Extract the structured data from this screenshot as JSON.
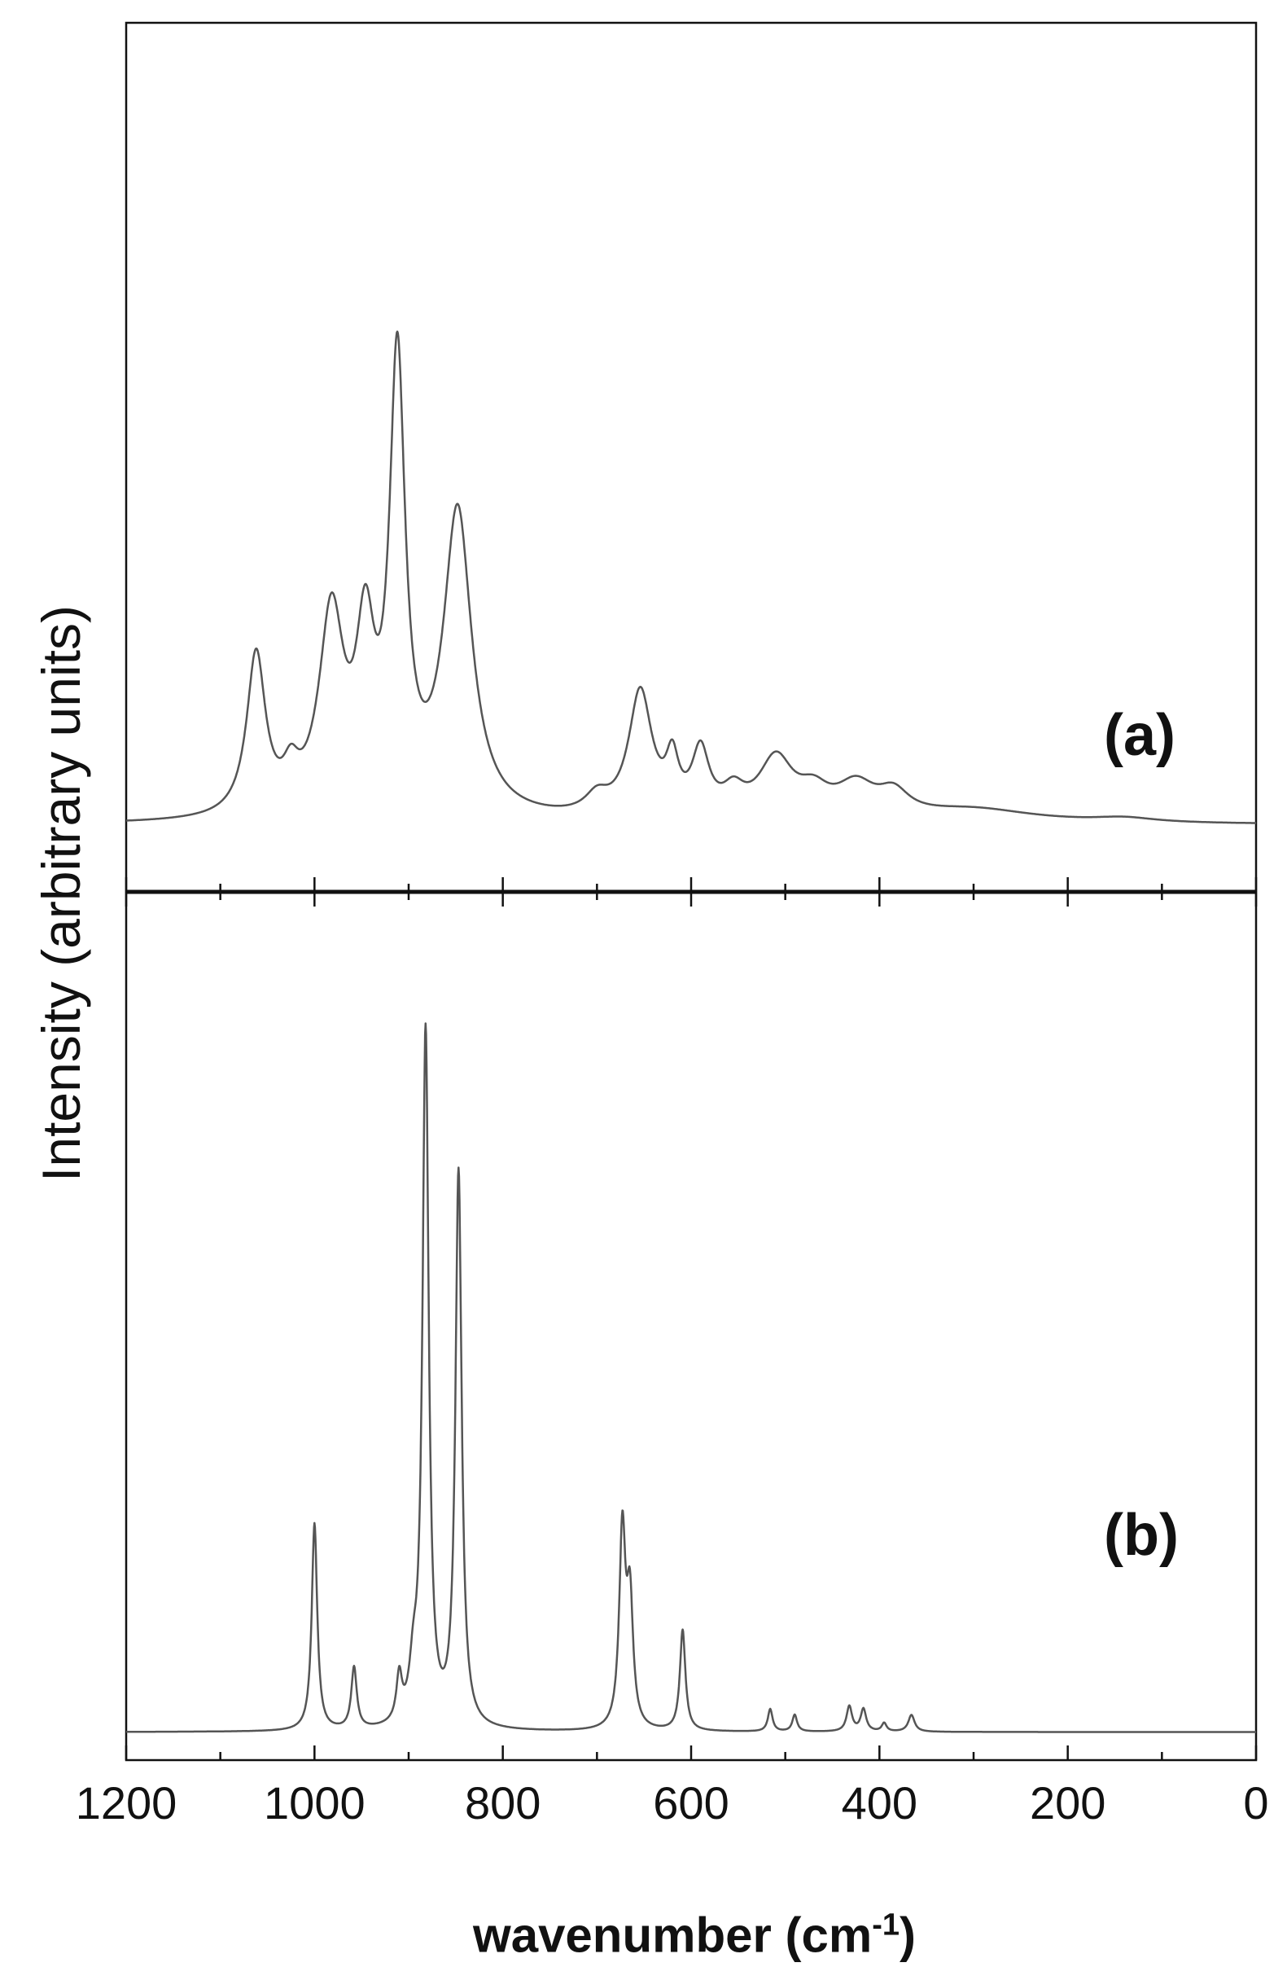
{
  "chart_data": {
    "type": "line",
    "xlabel": "wavenumber (cm",
    "xlabel_superscript": "-1",
    "xlabel_close": ")",
    "ylabel": "Intensity (arbitrary units)",
    "x_ticks": [
      "1200",
      "1000",
      "800",
      "600",
      "400",
      "200",
      "0"
    ],
    "xlim": [
      1200,
      0
    ],
    "x_reversed": true,
    "line_color": "#555555",
    "panels": [
      {
        "label": "(a)",
        "baseline": 0,
        "ylim": [
          -0.15,
          1.8
        ],
        "peaks": [
          {
            "x": 1062,
            "h": 0.36,
            "w": 12
          },
          {
            "x": 1025,
            "h": 0.07,
            "w": 10
          },
          {
            "x": 982,
            "h": 0.44,
            "w": 16
          },
          {
            "x": 946,
            "h": 0.36,
            "w": 12
          },
          {
            "x": 912,
            "h": 0.99,
            "w": 10
          },
          {
            "x": 848,
            "h": 0.68,
            "w": 18
          },
          {
            "x": 700,
            "h": 0.04,
            "w": 15
          },
          {
            "x": 654,
            "h": 0.28,
            "w": 15
          },
          {
            "x": 620,
            "h": 0.11,
            "w": 8
          },
          {
            "x": 590,
            "h": 0.14,
            "w": 11
          },
          {
            "x": 555,
            "h": 0.05,
            "w": 14
          },
          {
            "x": 510,
            "h": 0.13,
            "w": 22
          },
          {
            "x": 470,
            "h": 0.05,
            "w": 20
          },
          {
            "x": 425,
            "h": 0.07,
            "w": 25
          },
          {
            "x": 385,
            "h": 0.05,
            "w": 20
          },
          {
            "x": 300,
            "h": 0.03,
            "w": 80
          },
          {
            "x": 140,
            "h": 0.01,
            "w": 40
          }
        ]
      },
      {
        "label": "(b)",
        "baseline": 0,
        "ylim": [
          -0.05,
          1.5
        ],
        "peaks": [
          {
            "x": 1000,
            "h": 0.37,
            "w": 3.5
          },
          {
            "x": 958,
            "h": 0.11,
            "w": 3.5
          },
          {
            "x": 910,
            "h": 0.08,
            "w": 3.5
          },
          {
            "x": 895,
            "h": 0.08,
            "w": 5
          },
          {
            "x": 882,
            "h": 1.24,
            "w": 4
          },
          {
            "x": 847,
            "h": 0.99,
            "w": 4
          },
          {
            "x": 673,
            "h": 0.35,
            "w": 4
          },
          {
            "x": 665,
            "h": 0.22,
            "w": 4
          },
          {
            "x": 609,
            "h": 0.18,
            "w": 3.5
          },
          {
            "x": 516,
            "h": 0.04,
            "w": 3
          },
          {
            "x": 490,
            "h": 0.03,
            "w": 3
          },
          {
            "x": 432,
            "h": 0.045,
            "w": 3.5
          },
          {
            "x": 417,
            "h": 0.04,
            "w": 3.5
          },
          {
            "x": 395,
            "h": 0.015,
            "w": 3
          },
          {
            "x": 366,
            "h": 0.03,
            "w": 4
          }
        ]
      }
    ]
  }
}
